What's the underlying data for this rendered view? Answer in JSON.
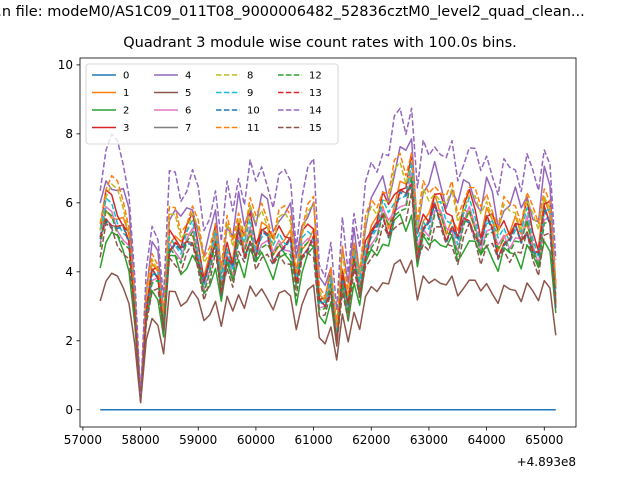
{
  "suptitle": "...n file: modeM0/AS1C09_011T08_9000006482_52836cztM0_level2_quad_clean...",
  "chart_data": {
    "type": "line",
    "title": "Quadrant 3 module wise count rates with 100.0s bins.",
    "xlabel": "",
    "ylabel": "",
    "x_offset_text": "+4.893e8",
    "x_ticks": [
      "57000",
      "58000",
      "59000",
      "60000",
      "61000",
      "62000",
      "63000",
      "64000",
      "65000"
    ],
    "y_ticks": [
      "0",
      "2",
      "4",
      "6",
      "8",
      "10"
    ],
    "xlim": [
      56950,
      65550
    ],
    "ylim": [
      -0.5,
      10.2
    ],
    "legend_position": "upper-left",
    "legend_ncol": 4,
    "colors": [
      "#1f77b4",
      "#ff7f0e",
      "#2ca02c",
      "#d62728",
      "#9467bd",
      "#8c564b",
      "#e377c2",
      "#7f7f7f",
      "#bcbd22",
      "#17becf",
      "#1f77b4",
      "#ff7f0e",
      "#2ca02c",
      "#d62728",
      "#9467bd",
      "#8c564b"
    ],
    "x": [
      57300,
      57400,
      57500,
      57600,
      57700,
      57800,
      57900,
      58000,
      58100,
      58200,
      58300,
      58400,
      58500,
      58600,
      58700,
      58800,
      58900,
      59000,
      59100,
      59200,
      59300,
      59400,
      59500,
      59600,
      59700,
      59800,
      59900,
      60000,
      60100,
      60200,
      60300,
      60400,
      60500,
      60600,
      60700,
      60800,
      60900,
      61000,
      61100,
      61200,
      61300,
      61400,
      61500,
      61600,
      61700,
      61800,
      61900,
      62000,
      62100,
      62200,
      62300,
      62400,
      62500,
      62600,
      62700,
      62800,
      62900,
      63000,
      63100,
      63200,
      63300,
      63400,
      63500,
      63600,
      63700,
      63800,
      63900,
      64000,
      64100,
      64200,
      64300,
      64400,
      64500,
      64600,
      64700,
      64800,
      64900,
      65000,
      65100,
      65200
    ],
    "base": [
      1.0,
      1.17,
      1.17,
      1.12,
      1.07,
      0.98,
      0.59,
      0.06,
      0.59,
      0.81,
      0.78,
      0.5,
      1.0,
      1.0,
      0.93,
      1.0,
      1.05,
      0.93,
      0.76,
      0.86,
      1.0,
      0.73,
      0.95,
      0.85,
      1.05,
      0.93,
      1.07,
      0.95,
      1.05,
      1.02,
      0.91,
      1.0,
      1.0,
      1.0,
      0.74,
      0.95,
      1.02,
      1.05,
      0.64,
      0.61,
      0.74,
      0.42,
      0.81,
      0.61,
      0.9,
      0.71,
      0.95,
      1.05,
      1.07,
      1.17,
      1.1,
      1.22,
      1.29,
      1.25,
      1.37,
      0.95,
      1.12,
      1.1,
      1.2,
      1.15,
      1.07,
      1.12,
      1.0,
      1.12,
      1.17,
      1.1,
      1.0,
      1.12,
      1.07,
      0.95,
      1.05,
      1.02,
      1.07,
      1.0,
      1.12,
      1.0,
      0.93,
      1.17,
      1.12,
      0.65
    ],
    "scales": [
      0.0,
      5.0,
      4.3,
      5.2,
      5.75,
      3.3,
      4.8,
      4.8,
      5.45,
      5.0,
      4.75,
      5.65,
      4.7,
      4.8,
      6.65,
      4.4
    ],
    "series": [
      {
        "name": "0",
        "dashed": false
      },
      {
        "name": "1",
        "dashed": false
      },
      {
        "name": "2",
        "dashed": false
      },
      {
        "name": "3",
        "dashed": false
      },
      {
        "name": "4",
        "dashed": false
      },
      {
        "name": "5",
        "dashed": false
      },
      {
        "name": "6",
        "dashed": false
      },
      {
        "name": "7",
        "dashed": false
      },
      {
        "name": "8",
        "dashed": true
      },
      {
        "name": "9",
        "dashed": true
      },
      {
        "name": "10",
        "dashed": true
      },
      {
        "name": "11",
        "dashed": true
      },
      {
        "name": "12",
        "dashed": true
      },
      {
        "name": "13",
        "dashed": true
      },
      {
        "name": "14",
        "dashed": true
      },
      {
        "name": "15",
        "dashed": true
      }
    ]
  }
}
